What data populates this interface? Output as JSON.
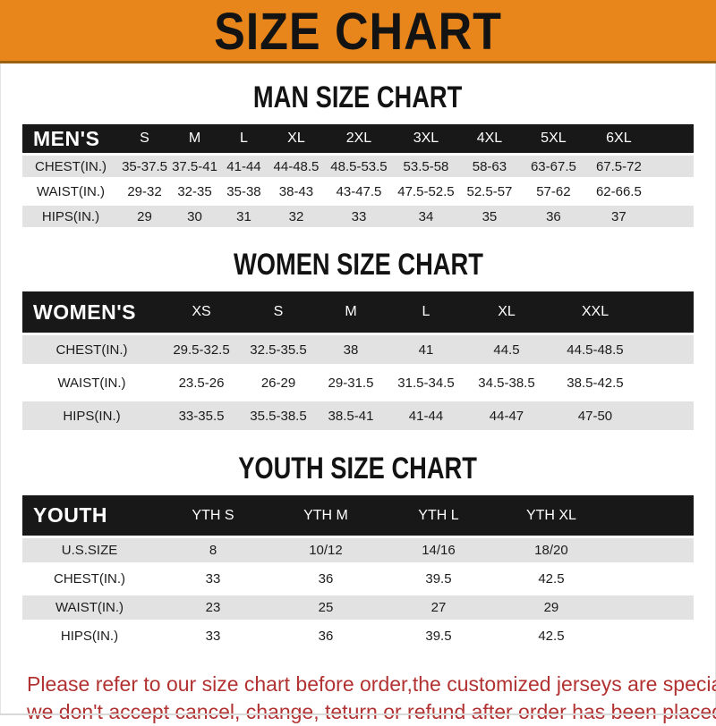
{
  "banner": {
    "title": "SIZE CHART"
  },
  "colors": {
    "banner_orange": "#e8861c",
    "header_bar_black": "#181818",
    "row_stripe_gray": "#e2e2e2",
    "footer_red": "#b23232"
  },
  "sections": [
    {
      "heading": "MAN SIZE CHART",
      "table": {
        "corner": "MEN'S",
        "columns": [
          "S",
          "M",
          "L",
          "XL",
          "2XL",
          "3XL",
          "4XL",
          "5XL",
          "6XL"
        ],
        "rows": [
          {
            "label": "CHEST(IN.)",
            "values": [
              "35-37.5",
              "37.5-41",
              "41-44",
              "44-48.5",
              "48.5-53.5",
              "53.5-58",
              "58-63",
              "63-67.5",
              "67.5-72"
            ]
          },
          {
            "label": "WAIST(IN.)",
            "values": [
              "29-32",
              "32-35",
              "35-38",
              "38-43",
              "43-47.5",
              "47.5-52.5",
              "52.5-57",
              "57-62",
              "62-66.5"
            ]
          },
          {
            "label": "HIPS(IN.)",
            "values": [
              "29",
              "30",
              "31",
              "32",
              "33",
              "34",
              "35",
              "36",
              "37"
            ]
          }
        ]
      }
    },
    {
      "heading": "WOMEN SIZE CHART",
      "table": {
        "corner": "WOMEN'S",
        "columns": [
          "XS",
          "S",
          "M",
          "L",
          "XL",
          "XXL"
        ],
        "rows": [
          {
            "label": "CHEST(IN.)",
            "values": [
              "29.5-32.5",
              "32.5-35.5",
              "38",
              "41",
              "44.5",
              "44.5-48.5"
            ]
          },
          {
            "label": "WAIST(IN.)",
            "values": [
              "23.5-26",
              "26-29",
              "29-31.5",
              "31.5-34.5",
              "34.5-38.5",
              "38.5-42.5"
            ]
          },
          {
            "label": "HIPS(IN.)",
            "values": [
              "33-35.5",
              "35.5-38.5",
              "38.5-41",
              "41-44",
              "44-47",
              "47-50"
            ]
          }
        ]
      }
    },
    {
      "heading": "YOUTH SIZE CHART",
      "table": {
        "corner": "YOUTH",
        "columns": [
          "YTH S",
          "YTH M",
          "YTH L",
          "YTH XL"
        ],
        "rows": [
          {
            "label": "U.S.SIZE",
            "values": [
              "8",
              "10/12",
              "14/16",
              "18/20"
            ]
          },
          {
            "label": "CHEST(IN.)",
            "values": [
              "33",
              "36",
              "39.5",
              "42.5"
            ]
          },
          {
            "label": "WAIST(IN.)",
            "values": [
              "23",
              "25",
              "27",
              "29"
            ]
          },
          {
            "label": "HIPS(IN.)",
            "values": [
              "33",
              "36",
              "39.5",
              "42.5"
            ]
          }
        ]
      }
    }
  ],
  "footer": {
    "line1": "Please refer to our size chart before order,the customized jerseys are special products,",
    "line2": "we don't accept cancel, change, teturn or refund after order has been placed!"
  }
}
